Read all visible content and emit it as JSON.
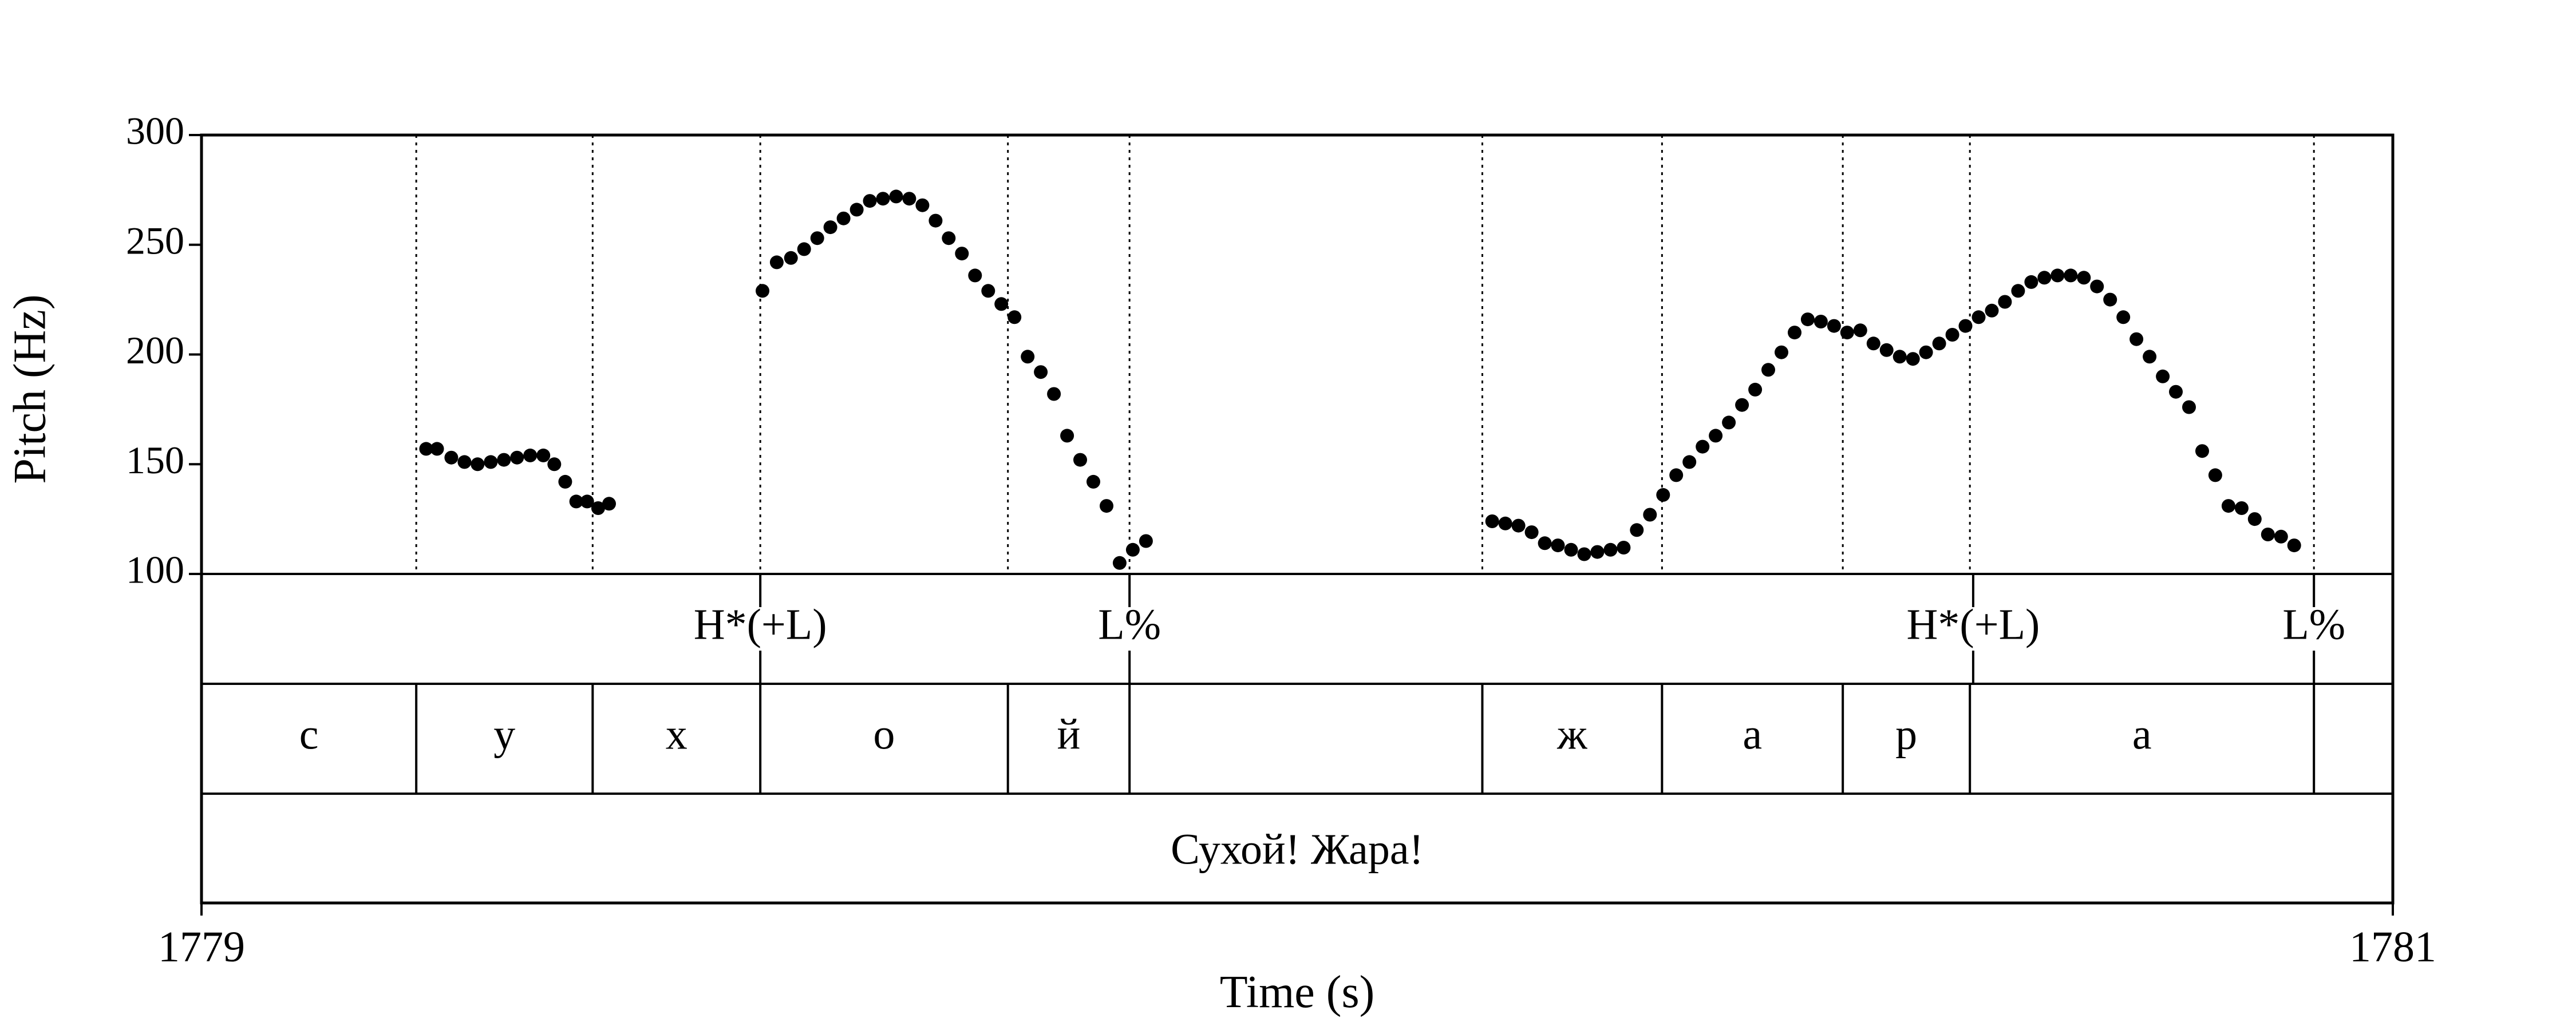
{
  "chart_data": {
    "type": "scatter",
    "title": "",
    "xlabel": "Time (s)",
    "ylabel": "Pitch (Hz)",
    "xlim": [
      1779,
      1781
    ],
    "ylim": [
      100,
      300
    ],
    "x_tick_labels": [
      "1779",
      "1781"
    ],
    "y_ticks": [
      100,
      150,
      200,
      250,
      300
    ],
    "y_tick_labels": [
      "100",
      "150",
      "200",
      "250",
      "300"
    ],
    "grid": false,
    "legend": "none",
    "point_color": "#000000",
    "series": [
      {
        "points": [
          [
            1779.205,
            157
          ],
          [
            1779.215,
            157
          ],
          [
            1779.228,
            153
          ],
          [
            1779.24,
            151
          ],
          [
            1779.252,
            150
          ],
          [
            1779.264,
            151
          ],
          [
            1779.276,
            152
          ],
          [
            1779.288,
            153
          ],
          [
            1779.3,
            154
          ],
          [
            1779.312,
            154
          ],
          [
            1779.322,
            150
          ],
          [
            1779.332,
            142
          ],
          [
            1779.342,
            133
          ],
          [
            1779.352,
            133
          ],
          [
            1779.362,
            130
          ],
          [
            1779.372,
            132
          ],
          [
            1779.512,
            229
          ],
          [
            1779.525,
            242
          ],
          [
            1779.538,
            244
          ],
          [
            1779.55,
            248
          ],
          [
            1779.562,
            253
          ],
          [
            1779.574,
            258
          ],
          [
            1779.586,
            262
          ],
          [
            1779.598,
            266
          ],
          [
            1779.61,
            270
          ],
          [
            1779.622,
            271
          ],
          [
            1779.634,
            272
          ],
          [
            1779.646,
            271
          ],
          [
            1779.658,
            268
          ],
          [
            1779.67,
            261
          ],
          [
            1779.682,
            253
          ],
          [
            1779.694,
            246
          ],
          [
            1779.706,
            236
          ],
          [
            1779.718,
            229
          ],
          [
            1779.73,
            223
          ],
          [
            1779.742,
            217
          ],
          [
            1779.754,
            199
          ],
          [
            1779.766,
            192
          ],
          [
            1779.778,
            182
          ],
          [
            1779.79,
            163
          ],
          [
            1779.802,
            152
          ],
          [
            1779.814,
            142
          ],
          [
            1779.826,
            131
          ],
          [
            1779.838,
            105
          ],
          [
            1779.85,
            111
          ],
          [
            1779.862,
            115
          ],
          [
            1780.178,
            124
          ],
          [
            1780.19,
            123
          ],
          [
            1780.202,
            122
          ],
          [
            1780.214,
            119
          ],
          [
            1780.226,
            114
          ],
          [
            1780.238,
            113
          ],
          [
            1780.25,
            111
          ],
          [
            1780.262,
            109
          ],
          [
            1780.274,
            110
          ],
          [
            1780.286,
            111
          ],
          [
            1780.298,
            112
          ],
          [
            1780.31,
            120
          ],
          [
            1780.322,
            127
          ],
          [
            1780.334,
            136
          ],
          [
            1780.346,
            145
          ],
          [
            1780.358,
            151
          ],
          [
            1780.37,
            158
          ],
          [
            1780.382,
            163
          ],
          [
            1780.394,
            169
          ],
          [
            1780.406,
            177
          ],
          [
            1780.418,
            184
          ],
          [
            1780.43,
            193
          ],
          [
            1780.442,
            201
          ],
          [
            1780.454,
            210
          ],
          [
            1780.466,
            216
          ],
          [
            1780.478,
            215
          ],
          [
            1780.49,
            213
          ],
          [
            1780.502,
            210
          ],
          [
            1780.514,
            211
          ],
          [
            1780.526,
            205
          ],
          [
            1780.538,
            202
          ],
          [
            1780.55,
            199
          ],
          [
            1780.562,
            198
          ],
          [
            1780.574,
            201
          ],
          [
            1780.586,
            205
          ],
          [
            1780.598,
            209
          ],
          [
            1780.61,
            213
          ],
          [
            1780.622,
            217
          ],
          [
            1780.634,
            220
          ],
          [
            1780.646,
            224
          ],
          [
            1780.658,
            229
          ],
          [
            1780.67,
            233
          ],
          [
            1780.682,
            235
          ],
          [
            1780.694,
            236
          ],
          [
            1780.706,
            236
          ],
          [
            1780.718,
            235
          ],
          [
            1780.73,
            231
          ],
          [
            1780.742,
            225
          ],
          [
            1780.754,
            217
          ],
          [
            1780.766,
            207
          ],
          [
            1780.778,
            199
          ],
          [
            1780.79,
            190
          ],
          [
            1780.802,
            183
          ],
          [
            1780.814,
            176
          ],
          [
            1780.826,
            156
          ],
          [
            1780.838,
            145
          ],
          [
            1780.85,
            131
          ],
          [
            1780.862,
            130
          ],
          [
            1780.874,
            125
          ],
          [
            1780.886,
            118
          ],
          [
            1780.898,
            117
          ],
          [
            1780.91,
            113
          ]
        ]
      }
    ],
    "tiers": {
      "tones": [
        {
          "time": 1779.51,
          "label": "H*(+L)"
        },
        {
          "time": 1779.847,
          "label": "L%"
        },
        {
          "time": 1780.617,
          "label": "H*(+L)"
        },
        {
          "time": 1780.928,
          "label": "L%"
        }
      ],
      "segments": [
        {
          "start": 1779.0,
          "end": 1779.196,
          "label": "с"
        },
        {
          "start": 1779.196,
          "end": 1779.357,
          "label": "у"
        },
        {
          "start": 1779.357,
          "end": 1779.51,
          "label": "х"
        },
        {
          "start": 1779.51,
          "end": 1779.736,
          "label": "о"
        },
        {
          "start": 1779.736,
          "end": 1779.847,
          "label": "й"
        },
        {
          "start": 1779.847,
          "end": 1780.169,
          "label": ""
        },
        {
          "start": 1780.169,
          "end": 1780.333,
          "label": "ж"
        },
        {
          "start": 1780.333,
          "end": 1780.498,
          "label": "а"
        },
        {
          "start": 1780.498,
          "end": 1780.614,
          "label": "р"
        },
        {
          "start": 1780.614,
          "end": 1780.928,
          "label": "а"
        },
        {
          "start": 1780.928,
          "end": 1781.0,
          "label": ""
        }
      ],
      "sentence": {
        "label": "Сухой! Жара!"
      }
    }
  }
}
